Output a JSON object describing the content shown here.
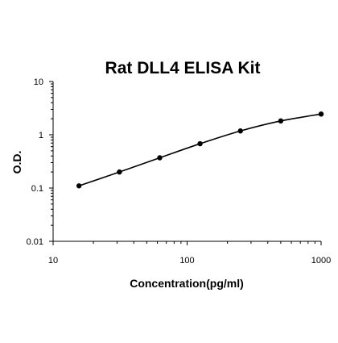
{
  "chart_data": {
    "type": "scatter",
    "title": "Rat DLL4 ELISA Kit",
    "xlabel": "Concentration(pg/ml)",
    "ylabel": "O.D.",
    "x_scale": "log",
    "y_scale": "log",
    "xlim": [
      10,
      1000
    ],
    "ylim": [
      0.01,
      10
    ],
    "x_ticks": [
      "10",
      "100",
      "1000"
    ],
    "y_ticks": [
      "10",
      "1",
      "0.1",
      "0.01"
    ],
    "grid": false,
    "legend": "none",
    "series": [
      {
        "points": [
          {
            "x": 15.6,
            "y": 0.11
          },
          {
            "x": 31.25,
            "y": 0.2
          },
          {
            "x": 62.5,
            "y": 0.37
          },
          {
            "x": 125,
            "y": 0.68
          },
          {
            "x": 250,
            "y": 1.18
          },
          {
            "x": 500,
            "y": 1.82
          },
          {
            "x": 1000,
            "y": 2.45
          }
        ]
      }
    ],
    "colors": {
      "line": "#000000",
      "points": "#000000",
      "axes": "#000000"
    }
  }
}
